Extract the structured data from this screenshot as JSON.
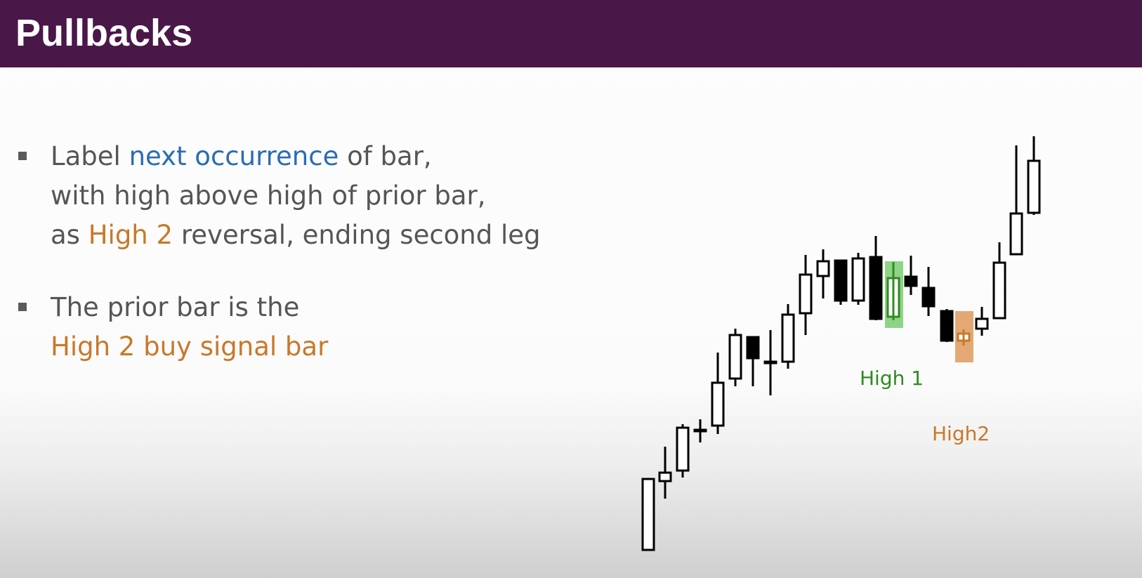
{
  "slide": {
    "title": "Pullbacks",
    "bullet1": {
      "line1_a": "Label ",
      "line1_b": "next occurrence",
      "line1_c": " of bar,",
      "line2": "with high above high of prior bar,",
      "line3_a": "as ",
      "line3_b": "High 2",
      "line3_c": " reversal, ending second leg"
    },
    "bullet2": {
      "line1": "The prior bar is the",
      "line2": "High 2 buy signal bar"
    },
    "colors": {
      "title_bar": "#4a1749",
      "highlight_blue": "#2a6cb3",
      "highlight_orange": "#c8782a",
      "high1_green": "#2f8a22",
      "high1_box": "#8fd486",
      "high2_box": "#e3a873"
    }
  },
  "chart_labels": {
    "high1": "High 1",
    "high2": "High2"
  }
}
